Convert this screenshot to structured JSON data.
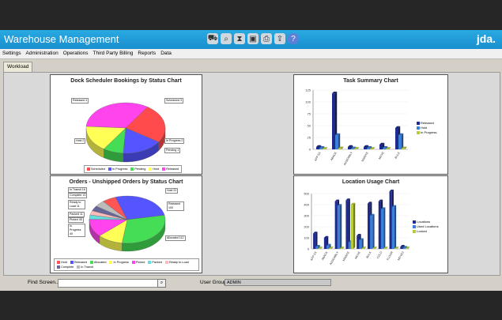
{
  "app": {
    "title": "Warehouse Management",
    "logo": "jda."
  },
  "toolbar": {
    "icons": [
      "truck-icon",
      "search-icon",
      "hourglass-icon",
      "save-icon",
      "print-icon",
      "export-icon",
      "help-icon"
    ]
  },
  "menu": [
    "Settings",
    "Administration",
    "Operations",
    "Third Party Billing",
    "Reports",
    "Data"
  ],
  "tabs": [
    "Workload"
  ],
  "charts": {
    "dock": {
      "title": "Dock Scheduler Bookings by Status Chart",
      "callouts": {
        "released": "Released  4",
        "scheduled": "Scheduled  3",
        "hold": "Hold  2",
        "inprogress": "In Progress  2",
        "pending": "Pending  1"
      },
      "legend": [
        "Scheduled",
        "In Progress",
        "Pending",
        "Hold",
        "Released"
      ]
    },
    "orders": {
      "title": "Orders - Unshipped Orders by Status Chart",
      "callouts": {
        "intransit": "In Transit  16",
        "complete": "Complete  13",
        "ready": "Ready to Load  11",
        "packed": "Packed  11",
        "picked": "Picked  45",
        "inprogress": "In Progress  40",
        "hold": "Hold  22",
        "released": "Released  100",
        "allocated": "Allocated  112"
      },
      "legend": [
        "Hold",
        "Released",
        "Allocated",
        "In Progress",
        "Picked",
        "Packed",
        "Ready to Load",
        "Complete",
        "In Transit"
      ]
    },
    "task": {
      "title": "Task Summary Chart",
      "yticks": [
        "125",
        "100",
        "75",
        "50",
        "25",
        "0"
      ],
      "categories": [
        "APP EX",
        "ABACK",
        "ASSEMBLY",
        "MAINTE",
        "MOVE",
        "BULK"
      ],
      "legend": [
        "Released",
        "Hold",
        "In Progress"
      ]
    },
    "location": {
      "title": "Location Usage Chart",
      "yticks": [
        "500",
        "400",
        "300",
        "200",
        "100",
        "0"
      ],
      "categories": [
        "APP EX",
        "ABACK",
        "ASSEMBLY",
        "MAINTE",
        "MOVE",
        "BULK",
        "COLD",
        "FLOOR",
        "MOVE2"
      ],
      "legend": [
        "Locations",
        "Used Locations",
        "Locked"
      ]
    }
  },
  "chart_data": [
    {
      "type": "pie",
      "title": "Dock Scheduler Bookings by Status Chart",
      "categories": [
        "Released",
        "Scheduled",
        "In Progress",
        "Pending",
        "Hold"
      ],
      "values": [
        4,
        3,
        2,
        1,
        2
      ],
      "colors": [
        "#ff44ee",
        "#ff4b4b",
        "#5555ff",
        "#44dd55",
        "#ffff55"
      ]
    },
    {
      "type": "pie",
      "title": "Orders - Unshipped Orders by Status Chart",
      "categories": [
        "Hold",
        "Released",
        "Allocated",
        "In Progress",
        "Picked",
        "Packed",
        "Ready to Load",
        "Complete",
        "In Transit"
      ],
      "values": [
        22,
        100,
        112,
        40,
        45,
        11,
        11,
        13,
        16
      ],
      "colors": [
        "#ff5555",
        "#5555ff",
        "#44dd55",
        "#ffff55",
        "#ff44ee",
        "#66dddd",
        "#ffbbbb",
        "#666699",
        "#bbbbbb"
      ]
    },
    {
      "type": "bar",
      "title": "Task Summary Chart",
      "categories": [
        "APP EX",
        "ABACK",
        "ASSEMBLY",
        "MAINTE",
        "MOVE",
        "BULK"
      ],
      "series": [
        {
          "name": "Released",
          "values": [
            5,
            118,
            5,
            5,
            10,
            45
          ]
        },
        {
          "name": "Hold",
          "values": [
            3,
            30,
            2,
            3,
            3,
            30
          ]
        },
        {
          "name": "In Progress",
          "values": [
            1,
            2,
            1,
            1,
            1,
            2
          ]
        }
      ],
      "colors": [
        "#1f2b8c",
        "#3a7fd9",
        "#b7cc3a"
      ],
      "ylim": [
        0,
        125
      ]
    },
    {
      "type": "bar",
      "title": "Location Usage Chart",
      "categories": [
        "APP EX",
        "ABACK",
        "ASSEMBLY",
        "MAINTE",
        "MOVE",
        "BULK",
        "COLD",
        "FLOOR",
        "MOVE2"
      ],
      "series": [
        {
          "name": "Locations",
          "values": [
            140,
            100,
            430,
            440,
            120,
            410,
            430,
            520,
            20
          ]
        },
        {
          "name": "Used Locations",
          "values": [
            20,
            30,
            390,
            60,
            80,
            300,
            360,
            380,
            10
          ]
        },
        {
          "name": "Locked",
          "values": [
            0,
            0,
            0,
            400,
            0,
            0,
            0,
            0,
            0
          ]
        }
      ],
      "colors": [
        "#1f2b8c",
        "#3a7fd9",
        "#b7cc3a"
      ],
      "ylim": [
        0,
        500
      ]
    }
  ],
  "footer": {
    "find_label": "Find Screen...",
    "usergroup_label": "User Group",
    "usergroup_value": "ADMIN"
  }
}
